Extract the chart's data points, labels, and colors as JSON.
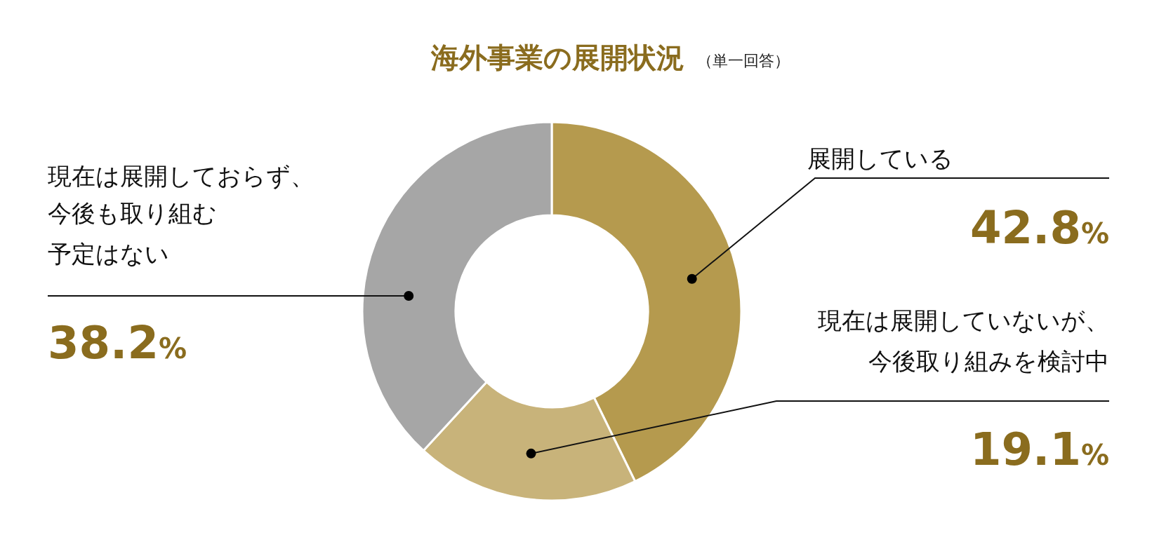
{
  "chart_data": {
    "type": "donut",
    "title": "海外事業の展開状況",
    "subtitle": "（単一回答）",
    "categories": [
      "展開している",
      "現在は展開していないが、今後取り組みを検討中",
      "現在は展開しておらず、今後も取り組む予定はない"
    ],
    "values": [
      42.8,
      19.1,
      38.2
    ],
    "colors": [
      "#b59a4e",
      "#c8b37a",
      "#a6a6a6"
    ],
    "value_labels": [
      "42.8%",
      "19.1%",
      "38.2%"
    ]
  }
}
